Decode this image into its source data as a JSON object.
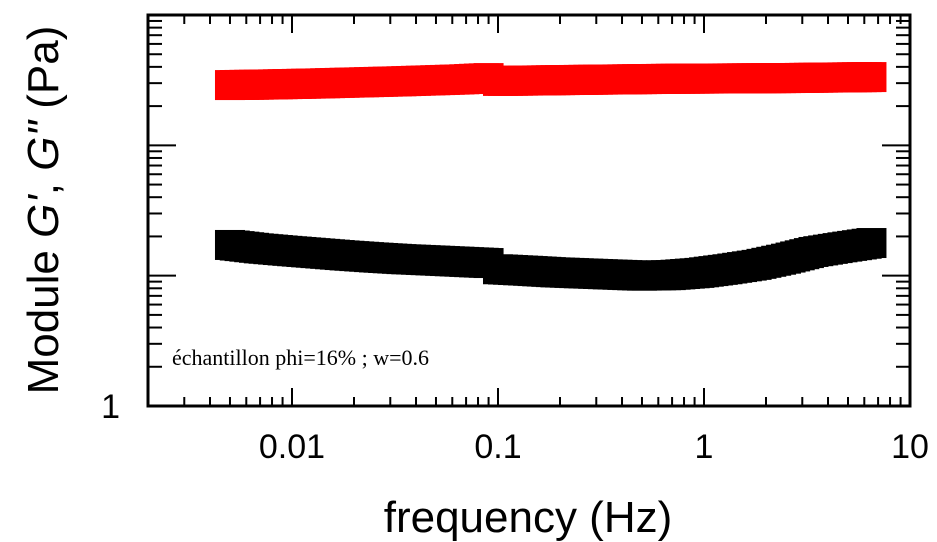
{
  "chart_data": {
    "type": "scatter",
    "xlabel": "frequency (Hz)",
    "ylabel_parts": [
      "Module ",
      "G'",
      ", ",
      "G\"",
      " (Pa)"
    ],
    "x_scale": "log",
    "y_scale": "log",
    "xlim": [
      0.002,
      10
    ],
    "ylim": [
      1,
      1000
    ],
    "x_ticks": [
      {
        "value": 0.01,
        "label": "0.01"
      },
      {
        "value": 0.1,
        "label": "0.1"
      },
      {
        "value": 1,
        "label": "1"
      },
      {
        "value": 10,
        "label": "10"
      }
    ],
    "y_ticks": [
      {
        "value": 1,
        "label": "1"
      }
    ],
    "grid": false,
    "annotation": "échantillon phi=16% ; w=0.6",
    "series": [
      {
        "color": "#ff0000",
        "x": [
          0.005,
          0.0069,
          0.0095,
          0.013,
          0.018,
          0.025,
          0.034,
          0.047,
          0.065,
          0.09,
          0.1,
          0.14,
          0.19,
          0.26,
          0.36,
          0.5,
          0.69,
          0.95,
          1.3,
          1.8,
          2.5,
          3.4,
          4.7,
          6.5
        ],
        "y": [
          290,
          292,
          295,
          298,
          302,
          306,
          310,
          315,
          320,
          328,
          312,
          314,
          316,
          318,
          320,
          322,
          324,
          325,
          326,
          327,
          328,
          330,
          332,
          334
        ]
      },
      {
        "color": "#000000",
        "x": [
          0.005,
          0.0069,
          0.0095,
          0.013,
          0.018,
          0.025,
          0.034,
          0.047,
          0.065,
          0.09,
          0.1,
          0.14,
          0.19,
          0.26,
          0.36,
          0.5,
          0.69,
          0.95,
          1.3,
          1.8,
          2.5,
          3.4,
          4.7,
          6.5
        ],
        "y": [
          17.2,
          16.2,
          15.5,
          14.9,
          14.3,
          13.8,
          13.4,
          13.1,
          12.8,
          12.5,
          11.2,
          10.9,
          10.6,
          10.4,
          10.2,
          10.0,
          10.1,
          10.5,
          11.2,
          12.1,
          13.5,
          15.2,
          16.5,
          17.8
        ]
      }
    ]
  }
}
